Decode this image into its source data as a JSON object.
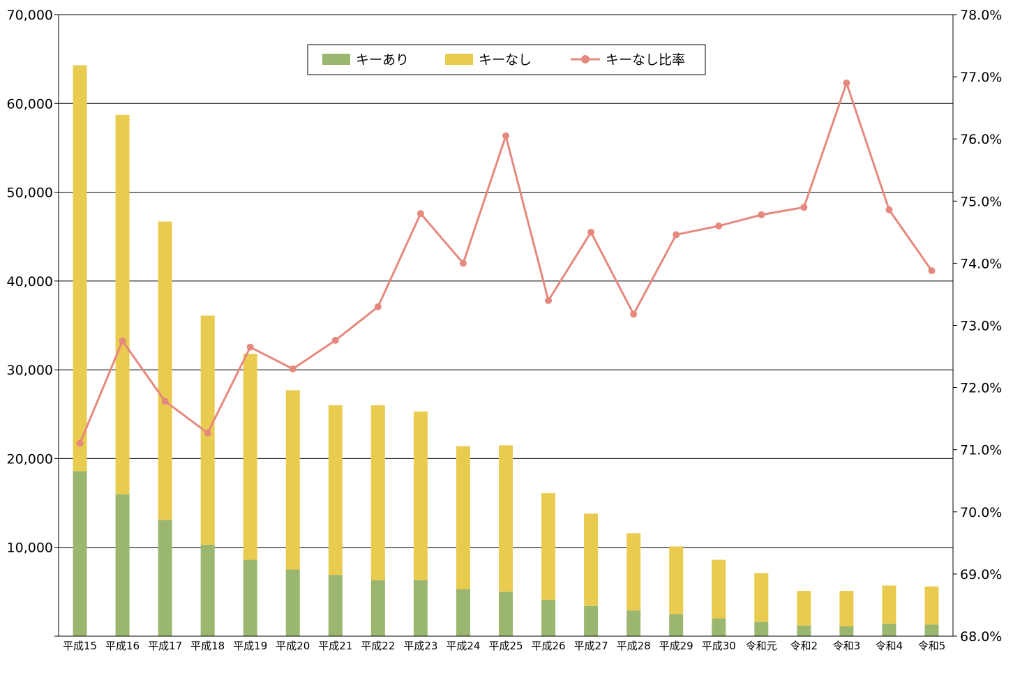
{
  "chart_data": {
    "type": "bar",
    "stacked": true,
    "categories": [
      "平成15",
      "平成16",
      "平成17",
      "平成18",
      "平成19",
      "平成20",
      "平成21",
      "平成22",
      "平成23",
      "平成24",
      "平成25",
      "平成26",
      "平成27",
      "平成28",
      "平成29",
      "平成30",
      "令和元",
      "令和2",
      "令和3",
      "令和4",
      "令和5"
    ],
    "series": [
      {
        "name": "キーあり",
        "type": "bar",
        "axis": "left",
        "color": "#9bb76f",
        "values": [
          18600,
          16000,
          13100,
          10300,
          8600,
          7500,
          6900,
          6300,
          6300,
          5300,
          5000,
          4100,
          3400,
          2900,
          2500,
          2000,
          1600,
          1200,
          1100,
          1400,
          1300
        ]
      },
      {
        "name": "キーなし",
        "type": "bar",
        "axis": "left",
        "color": "#e9cc4f",
        "values": [
          45700,
          42700,
          33600,
          25800,
          23200,
          20200,
          19100,
          19700,
          19000,
          16100,
          16500,
          12000,
          10400,
          8700,
          7600,
          6600,
          5500,
          3900,
          4000,
          4300,
          4300
        ]
      },
      {
        "name": "キーなし比率",
        "type": "line",
        "axis": "right",
        "color": "#e5897e",
        "values": [
          71.1,
          72.75,
          71.78,
          71.27,
          72.65,
          72.3,
          72.76,
          73.3,
          74.8,
          74.0,
          76.05,
          73.4,
          74.5,
          73.18,
          74.46,
          74.6,
          74.78,
          74.9,
          76.9,
          74.86,
          73.88
        ]
      }
    ],
    "y_left": {
      "min": 0,
      "max": 70000,
      "ticks": [
        10000,
        20000,
        30000,
        40000,
        50000,
        60000,
        70000
      ],
      "tick_labels": [
        "10,000",
        "20,000",
        "30,000",
        "40,000",
        "50,000",
        "60,000",
        "70,000"
      ]
    },
    "y_right": {
      "min": 68.0,
      "max": 78.0,
      "ticks": [
        68,
        69,
        70,
        71,
        72,
        73,
        74,
        75,
        76,
        77,
        78
      ],
      "tick_labels": [
        "68.0%",
        "69.0%",
        "70.0%",
        "71.0%",
        "72.0%",
        "73.0%",
        "74.0%",
        "75.0%",
        "76.0%",
        "77.0%",
        "78.0%"
      ]
    },
    "grid": "horizontal",
    "legend": "top-center",
    "title": "",
    "xlabel": "",
    "ylabel": ""
  }
}
